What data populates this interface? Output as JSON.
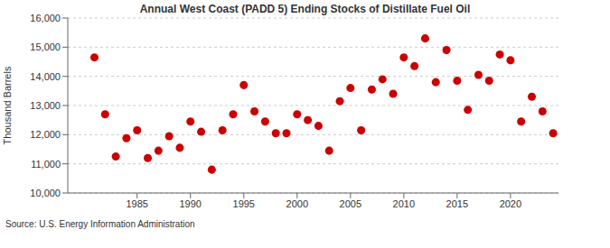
{
  "chart_data": {
    "type": "scatter",
    "title": "Annual West Coast (PADD 5) Ending Stocks of Distillate Fuel Oil",
    "y_label": "Thousand Barrels",
    "source": "Source: U.S. Energy Information Administration",
    "x": [
      1981,
      1982,
      1983,
      1984,
      1985,
      1986,
      1987,
      1988,
      1989,
      1990,
      1991,
      1992,
      1993,
      1994,
      1995,
      1996,
      1997,
      1998,
      1999,
      2000,
      2001,
      2002,
      2003,
      2004,
      2005,
      2006,
      2007,
      2008,
      2009,
      2010,
      2011,
      2012,
      2013,
      2014,
      2015,
      2016,
      2017,
      2018,
      2019,
      2020,
      2021,
      2022,
      2023,
      2024
    ],
    "values": [
      14650,
      12700,
      11250,
      11880,
      12150,
      11200,
      11450,
      11950,
      11550,
      12450,
      12100,
      10800,
      12150,
      12700,
      13700,
      12800,
      12450,
      12050,
      12050,
      12700,
      12500,
      12300,
      11450,
      13150,
      13600,
      12150,
      13550,
      13900,
      13400,
      14650,
      14350,
      15300,
      13800,
      14900,
      13850,
      12850,
      14050,
      13850,
      14750,
      14550,
      12450,
      13300,
      12800,
      12050
    ],
    "color": "#cc0000",
    "marker": "circle",
    "grid": true,
    "xlim": [
      1978.5,
      2024.5
    ],
    "xticks": [
      1985,
      1990,
      1995,
      2000,
      2005,
      2010,
      2015,
      2020
    ],
    "ylim": [
      10000,
      16000
    ],
    "yticks": [
      {
        "value": 10000,
        "label": "10,000"
      },
      {
        "value": 11000,
        "label": "11,000"
      },
      {
        "value": 12000,
        "label": "12,000"
      },
      {
        "value": 13000,
        "label": "13,000"
      },
      {
        "value": 14000,
        "label": "14,000"
      },
      {
        "value": 15000,
        "label": "15,000"
      },
      {
        "value": 16000,
        "label": "16,000"
      }
    ]
  }
}
